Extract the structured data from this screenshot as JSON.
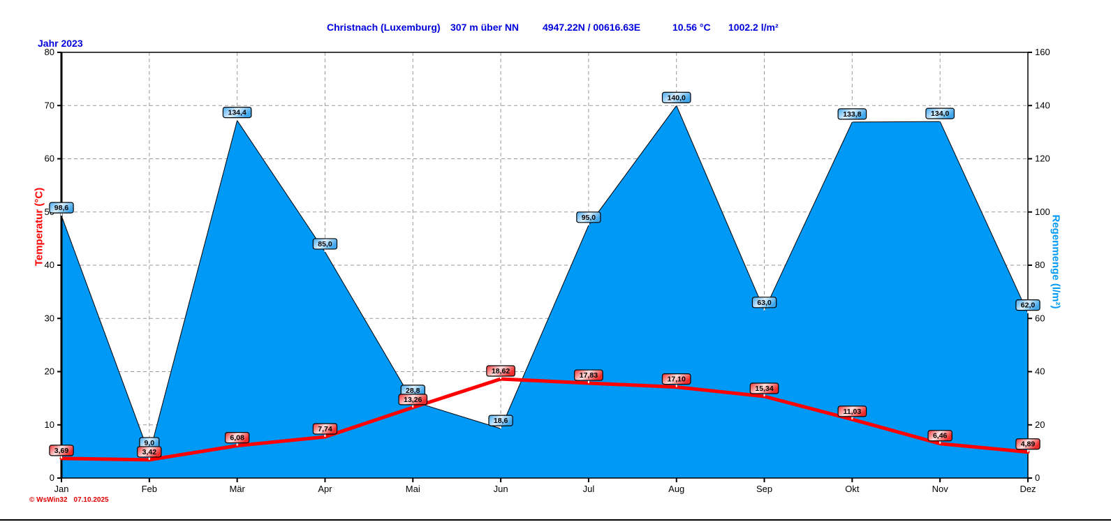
{
  "header": {
    "station": "Christnach (Luxemburg)",
    "altitude": "307 m über NN",
    "coordinates": "4947.22N / 00616.63E",
    "mean_temperature": "10.56 °C",
    "total_rain": "1002.2 l/m²"
  },
  "year_label": "Jahr  2023",
  "footer": {
    "copyright": "© WsWin32",
    "date": "07.10.2025"
  },
  "colors": {
    "title_blue": "#0000dd",
    "rain_fill": "#0099f5",
    "temp_line": "#ff0000",
    "grid": "#9a9a9a",
    "axis": "#000000",
    "copyright_red": "#e00000"
  },
  "chart_data": {
    "type": "area",
    "title": "Christnach (Luxemburg) Jahr 2023",
    "categories": [
      "Jan",
      "Feb",
      "Mär",
      "Apr",
      "Mai",
      "Jun",
      "Jul",
      "Aug",
      "Sep",
      "Okt",
      "Nov",
      "Dez"
    ],
    "series": [
      {
        "name": "Regenmenge",
        "unit": "l/m²",
        "axis": "right",
        "type": "area",
        "color": "#0099f5",
        "values": [
          98.6,
          9.0,
          134.4,
          85.0,
          28.8,
          18.6,
          95.0,
          140.0,
          63.0,
          133.8,
          134.0,
          62.0
        ],
        "labels": [
          "98,6",
          "9,0",
          "134,4",
          "85,0",
          "28,8",
          "18,6",
          "95,0",
          "140,0",
          "63,0",
          "133,8",
          "134,0",
          "62,0"
        ]
      },
      {
        "name": "Temperatur",
        "unit": "°C",
        "axis": "left",
        "type": "line",
        "color": "#ff0000",
        "values": [
          3.69,
          3.42,
          6.08,
          7.74,
          13.26,
          18.62,
          17.83,
          17.1,
          15.34,
          11.03,
          6.46,
          4.89
        ],
        "labels": [
          "3,69",
          "3,42",
          "6,08",
          "7,74",
          "13,26",
          "18,62",
          "17,83",
          "17,10",
          "15,34",
          "11,03",
          "6,46",
          "4,89"
        ]
      }
    ],
    "left_axis": {
      "title": "Temperatur  (°C)",
      "min": 0,
      "max": 80,
      "step": 10,
      "ticks": [
        "0",
        "10",
        "20",
        "30",
        "40",
        "50",
        "60",
        "70",
        "80"
      ]
    },
    "right_axis": {
      "title": "Regenmenge  (l/m²)",
      "min": 0,
      "max": 160,
      "step": 20,
      "ticks": [
        "0",
        "20",
        "40",
        "60",
        "80",
        "100",
        "120",
        "140",
        "160"
      ]
    },
    "grid": true,
    "legend_position": "none"
  }
}
